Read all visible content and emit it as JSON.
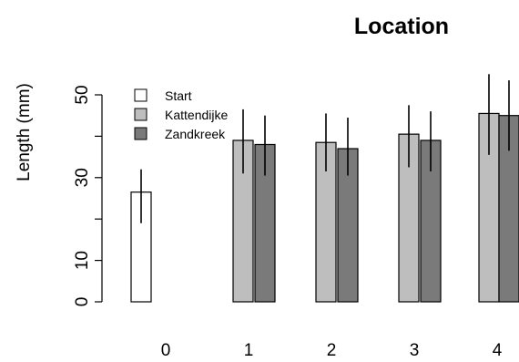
{
  "chart_data": {
    "type": "bar",
    "title": "Location",
    "ylabel": "Length (mm)",
    "xlabel": "",
    "ylim": [
      0,
      50
    ],
    "yticks": [
      0,
      10,
      30,
      50
    ],
    "categories": [
      "0",
      "1",
      "2",
      "3",
      "4"
    ],
    "series": [
      {
        "name": "Start",
        "color": "#ffffff",
        "values": [
          26.5,
          null,
          null,
          null,
          null
        ],
        "err_low": [
          19,
          null,
          null,
          null,
          null
        ],
        "err_high": [
          32,
          null,
          null,
          null,
          null
        ]
      },
      {
        "name": "Kattendijke",
        "color": "#bebebe",
        "values": [
          null,
          39,
          38.5,
          40.5,
          45.5
        ],
        "err_low": [
          null,
          31,
          31.5,
          32.5,
          35.5
        ],
        "err_high": [
          null,
          46.5,
          45.5,
          47.5,
          55
        ]
      },
      {
        "name": "Zandkreek",
        "color": "#7a7a7a",
        "values": [
          null,
          38,
          37,
          39,
          45
        ],
        "err_low": [
          null,
          30.5,
          30.5,
          31.5,
          36.5
        ],
        "err_high": [
          null,
          45,
          44.5,
          46,
          53.5
        ]
      }
    ],
    "legend_position": "top-left",
    "grid": false
  }
}
